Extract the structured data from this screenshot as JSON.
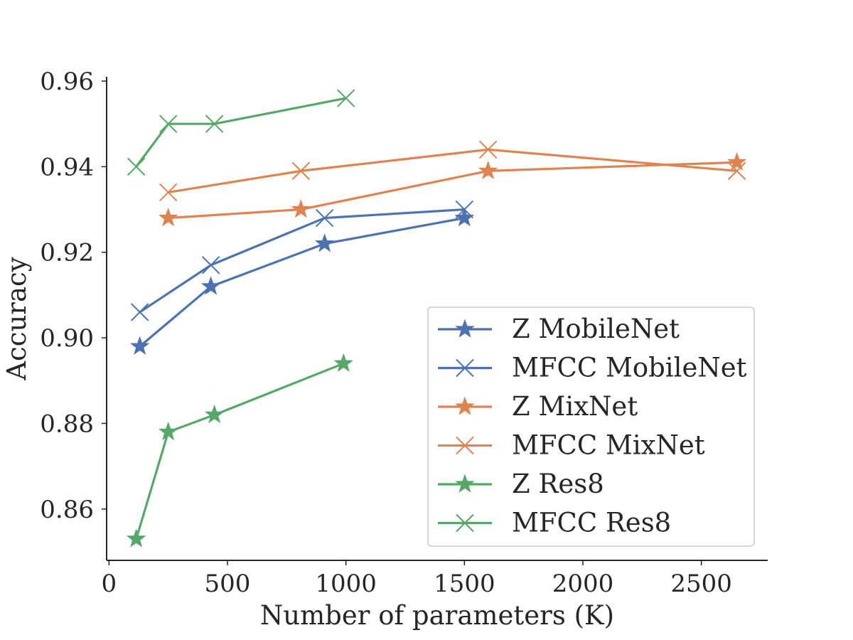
{
  "chart_data": {
    "type": "line",
    "xlabel": "Number of parameters (K)",
    "ylabel": "Accuracy",
    "xlim": [
      -10,
      2780
    ],
    "ylim": [
      0.848,
      0.961
    ],
    "xticks": [
      0,
      500,
      1000,
      1500,
      2000,
      2500
    ],
    "xtick_labels": [
      "0",
      "500",
      "1000",
      "1500",
      "2000",
      "2500"
    ],
    "yticks": [
      0.86,
      0.88,
      0.9,
      0.92,
      0.94,
      0.96
    ],
    "ytick_labels": [
      "0.86",
      "0.88",
      "0.90",
      "0.92",
      "0.94",
      "0.96"
    ],
    "grid": false,
    "legend_position": "lower-right",
    "series": [
      {
        "name": "Z MobileNet",
        "color": "#4c72b0",
        "marker": "star",
        "x": [
          130,
          430,
          910,
          1500
        ],
        "y": [
          0.898,
          0.912,
          0.922,
          0.928
        ]
      },
      {
        "name": "MFCC MobileNet",
        "color": "#4c72b0",
        "marker": "x",
        "x": [
          130,
          430,
          910,
          1500
        ],
        "y": [
          0.906,
          0.917,
          0.928,
          0.93
        ]
      },
      {
        "name": "Z MixNet",
        "color": "#dd8452",
        "marker": "star",
        "x": [
          250,
          810,
          1600,
          2650
        ],
        "y": [
          0.928,
          0.93,
          0.939,
          0.941
        ]
      },
      {
        "name": "MFCC MixNet",
        "color": "#dd8452",
        "marker": "x",
        "x": [
          250,
          810,
          1600,
          2650
        ],
        "y": [
          0.934,
          0.939,
          0.944,
          0.939
        ]
      },
      {
        "name": "Z Res8",
        "color": "#55a868",
        "marker": "star",
        "x": [
          115,
          250,
          445,
          990
        ],
        "y": [
          0.853,
          0.878,
          0.882,
          0.894
        ]
      },
      {
        "name": "MFCC Res8",
        "color": "#55a868",
        "marker": "x",
        "x": [
          115,
          250,
          445,
          1000
        ],
        "y": [
          0.94,
          0.95,
          0.95,
          0.956
        ]
      }
    ]
  }
}
